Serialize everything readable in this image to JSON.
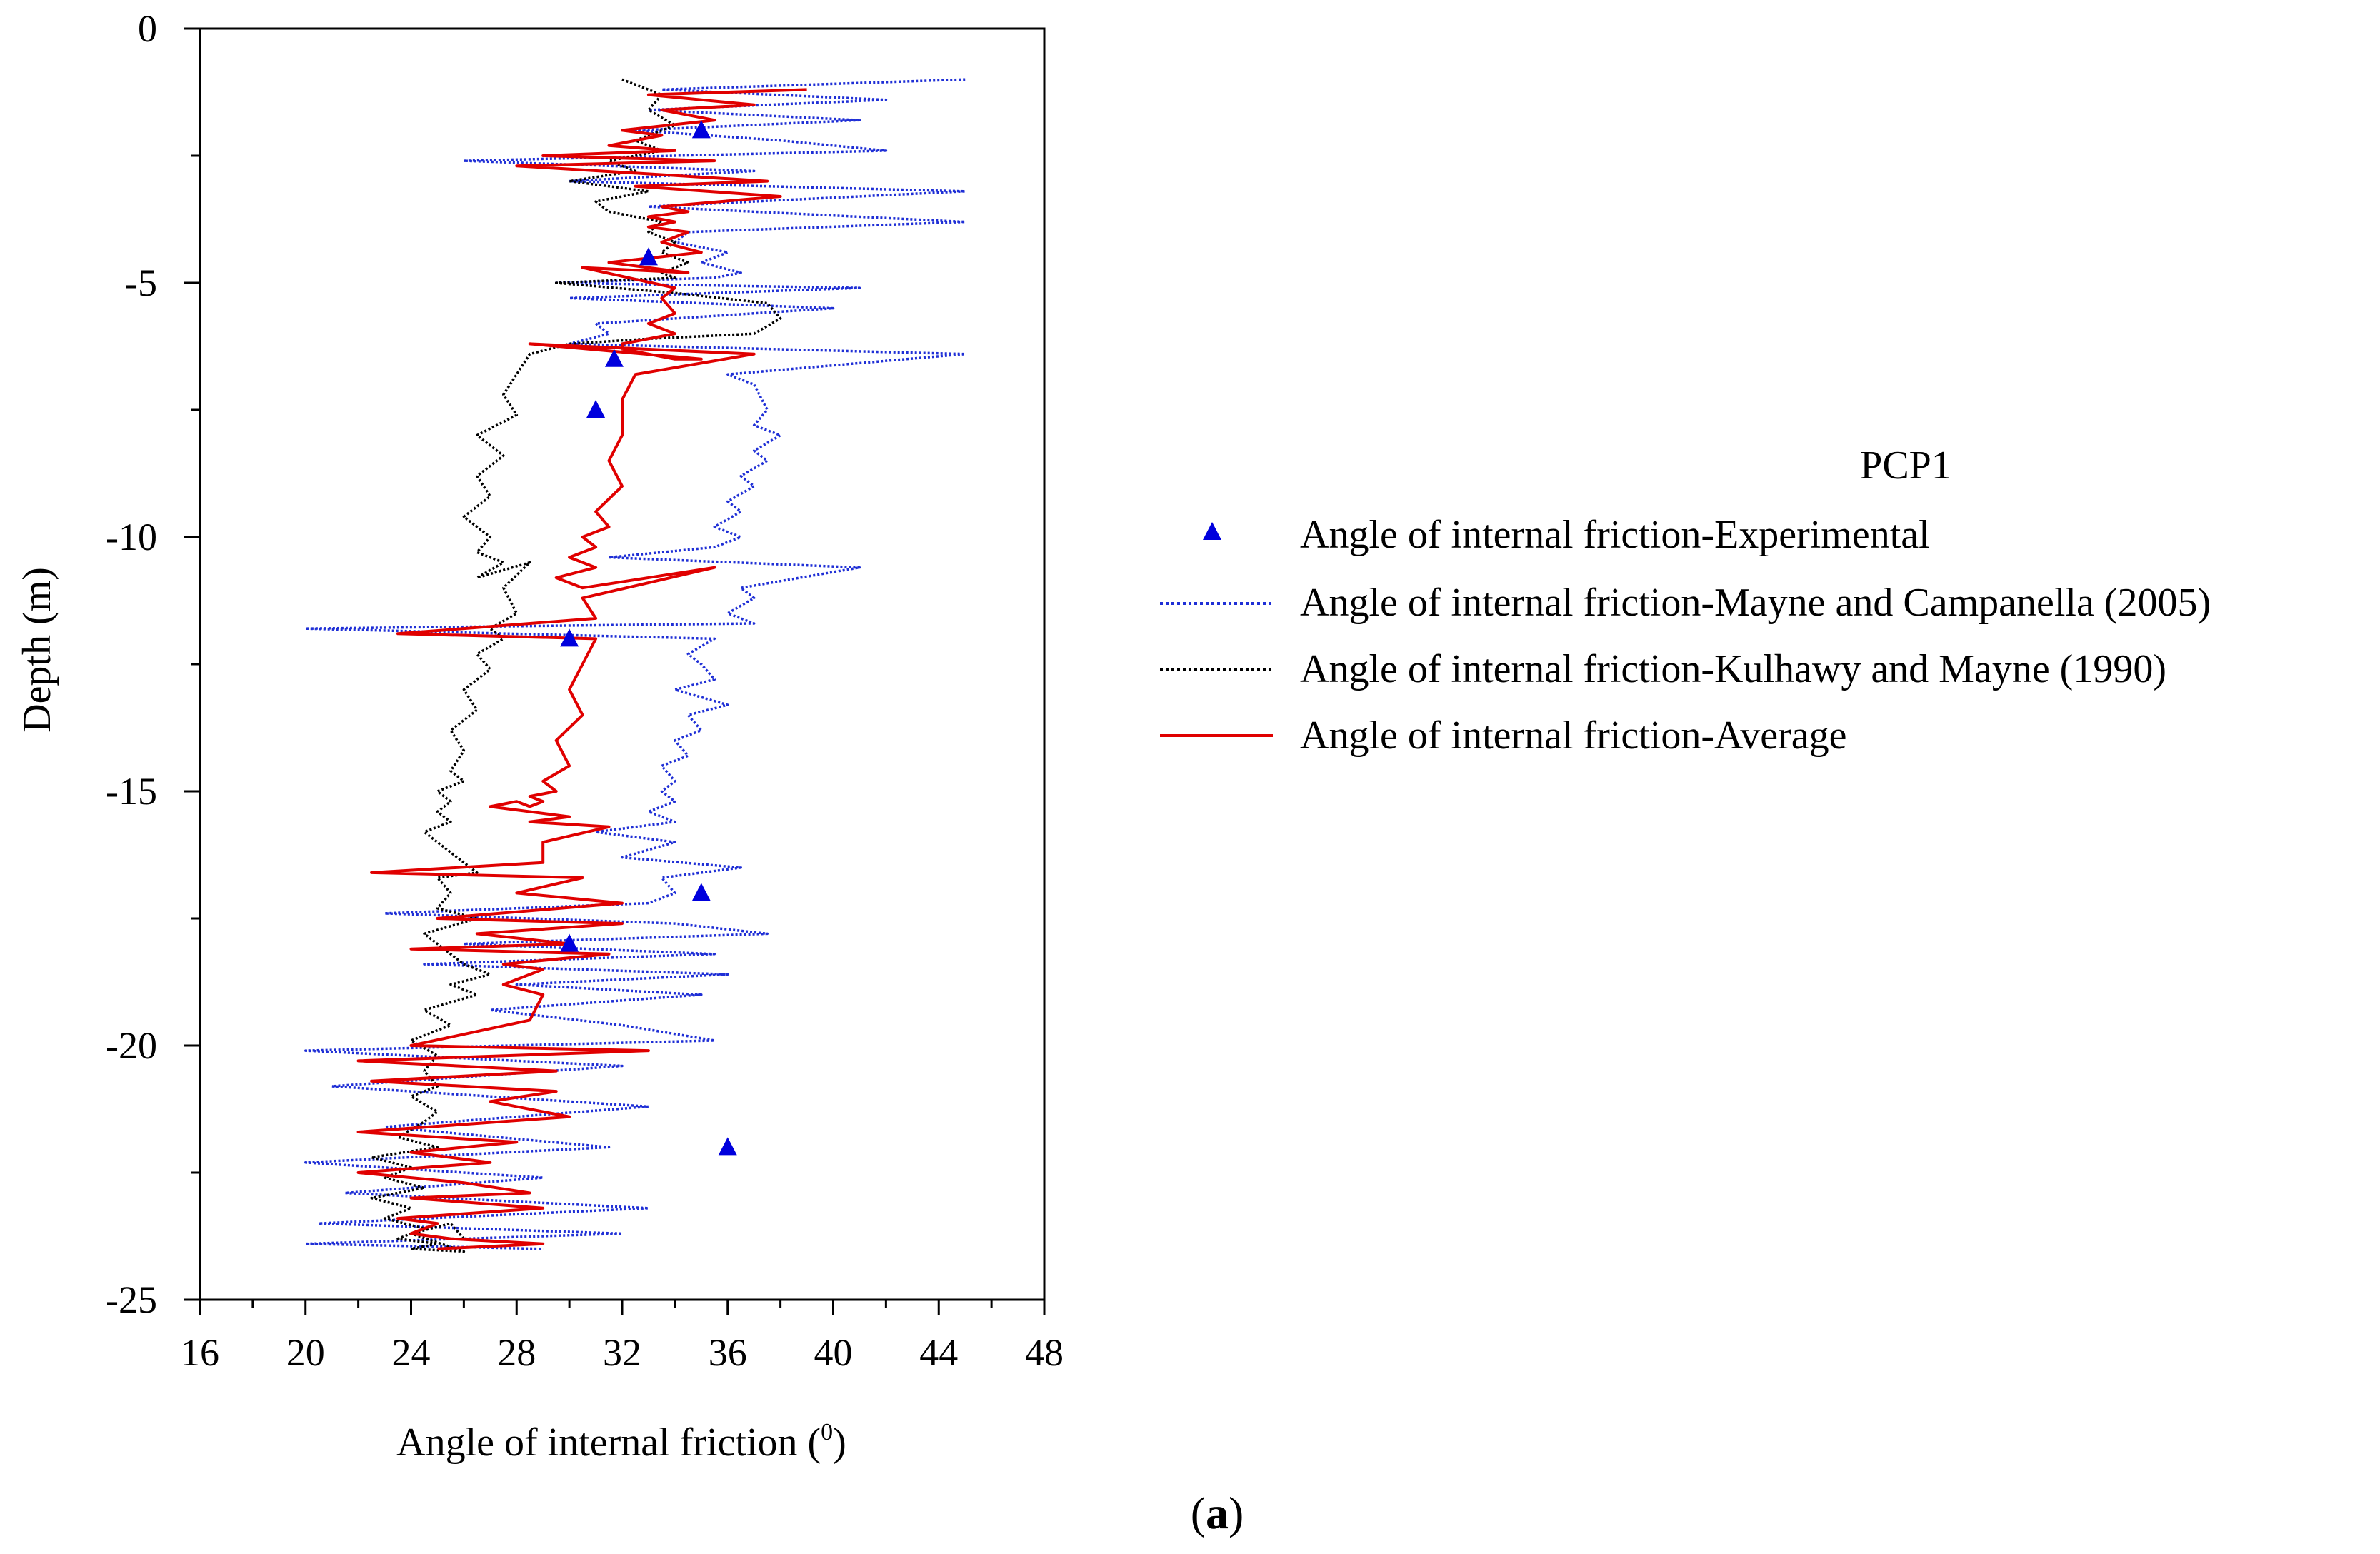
{
  "chart_data": {
    "type": "line",
    "panel_label_open": "(",
    "panel_label_letter": "a",
    "panel_label_close": ")",
    "xlabel": "Angle of internal friction (",
    "xlabel_sup": "0",
    "xlabel_close": ")",
    "ylabel": "Depth (m)",
    "xlim": [
      16,
      48
    ],
    "ylim": [
      -25,
      0
    ],
    "x_ticks": [
      16,
      20,
      24,
      28,
      32,
      36,
      40,
      44,
      48
    ],
    "y_ticks": [
      0,
      -5,
      -10,
      -15,
      -20,
      -25
    ],
    "legend_title": "PCP1",
    "legend_position": "right",
    "colors": {
      "experimental": "#0000dd",
      "mayne": "#1f2fd6",
      "kulhawy": "#000000",
      "average": "#e00000"
    },
    "series": [
      {
        "name": "Angle of internal friction-Experimental",
        "style": "triangle-marker",
        "x": [
          35.0,
          33.0,
          31.7,
          31.0,
          30.0,
          35.0,
          30.0,
          36.0
        ],
        "depth": [
          -2.0,
          -4.5,
          -6.5,
          -7.5,
          -12.0,
          -17.0,
          -18.0,
          -22.0
        ]
      },
      {
        "name": "Angle of internal friction-Mayne and Campanella (2005)",
        "style": "dotted",
        "x": [
          45.0,
          33.5,
          42.0,
          33.0,
          41.0,
          32.5,
          38.0,
          42.0,
          26.0,
          37.0,
          30.0,
          45.0,
          33.0,
          45.0,
          34.5,
          34.0,
          36.0,
          35.0,
          36.5,
          35.5,
          29.5,
          41.0,
          30.0,
          40.0,
          31.0,
          31.5,
          30.0,
          45.0,
          36.0,
          37.0,
          37.5,
          37.0,
          38.0,
          37.0,
          37.5,
          36.5,
          37.0,
          36.0,
          36.5,
          35.5,
          36.5,
          35.5,
          31.5,
          41.0,
          36.5,
          37.0,
          36.0,
          37.0,
          20.0,
          35.5,
          34.5,
          35.0,
          35.5,
          34.0,
          36.0,
          34.5,
          35.0,
          34.0,
          34.5,
          33.5,
          34.0,
          33.5,
          34.0,
          33.0,
          34.0,
          31.0,
          34.0,
          32.0,
          36.5,
          33.5,
          34.0,
          33.0,
          23.0,
          34.0,
          37.5,
          26.0,
          35.5,
          24.5,
          36.0,
          28.0,
          35.0,
          27.0,
          32.0,
          35.5,
          20.0,
          32.0,
          21.0,
          33.0,
          23.0,
          31.5,
          20.0,
          29.0,
          21.5,
          33.0,
          20.5,
          32.0,
          20.0,
          29.0
        ],
        "depth": [
          -1.0,
          -1.2,
          -1.4,
          -1.6,
          -1.8,
          -2.0,
          -2.2,
          -2.4,
          -2.6,
          -2.8,
          -3.0,
          -3.2,
          -3.5,
          -3.8,
          -4.0,
          -4.2,
          -4.4,
          -4.6,
          -4.8,
          -4.9,
          -5.0,
          -5.1,
          -5.3,
          -5.5,
          -5.8,
          -6.0,
          -6.2,
          -6.4,
          -6.8,
          -7.0,
          -7.5,
          -7.8,
          -8.0,
          -8.3,
          -8.5,
          -8.8,
          -9.0,
          -9.3,
          -9.5,
          -9.8,
          -10.0,
          -10.2,
          -10.4,
          -10.6,
          -11.0,
          -11.2,
          -11.5,
          -11.7,
          -11.8,
          -12.0,
          -12.3,
          -12.5,
          -12.8,
          -13.0,
          -13.3,
          -13.5,
          -13.8,
          -14.0,
          -14.3,
          -14.5,
          -14.8,
          -15.0,
          -15.2,
          -15.4,
          -15.6,
          -15.8,
          -16.0,
          -16.3,
          -16.5,
          -16.7,
          -17.0,
          -17.2,
          -17.4,
          -17.6,
          -17.8,
          -18.0,
          -18.2,
          -18.4,
          -18.6,
          -18.8,
          -19.0,
          -19.3,
          -19.6,
          -19.9,
          -20.1,
          -20.4,
          -20.8,
          -21.2,
          -21.6,
          -22.0,
          -22.3,
          -22.6,
          -22.9,
          -23.2,
          -23.5,
          -23.7,
          -23.9,
          -24.0
        ]
      },
      {
        "name": "Angle of internal friction-Kulhawy and Mayne (1990)",
        "style": "dotted",
        "x": [
          32.0,
          33.5,
          33.0,
          34.0,
          32.5,
          33.5,
          31.5,
          32.5,
          30.0,
          33.0,
          31.0,
          31.5,
          33.5,
          33.0,
          34.0,
          33.5,
          34.5,
          33.5,
          34.0,
          29.5,
          34.0,
          37.5,
          38.0,
          37.0,
          33.0,
          30.0,
          28.5,
          28.0,
          27.5,
          28.0,
          26.5,
          27.5,
          26.5,
          27.0,
          26.0,
          27.0,
          26.5,
          27.5,
          26.5,
          28.5,
          27.5,
          28.0,
          27.0,
          27.5,
          26.5,
          27.0,
          26.0,
          26.5,
          25.5,
          26.0,
          25.5,
          26.0,
          25.0,
          25.5,
          25.0,
          25.5,
          24.5,
          25.0,
          25.5,
          26.0,
          26.5,
          25.0,
          25.5,
          25.0,
          26.5,
          24.5,
          25.0,
          25.5,
          26.0,
          27.0,
          25.5,
          26.5,
          24.5,
          25.5,
          24.0,
          25.0,
          24.5,
          25.0,
          24.0,
          25.0,
          24.5,
          23.5,
          25.0,
          22.5,
          24.0,
          23.0,
          24.5,
          22.5,
          24.0,
          23.0,
          24.5,
          23.5,
          25.0,
          24.0,
          26.0,
          24.0,
          25.5,
          26.0
        ],
        "depth": [
          -1.0,
          -1.3,
          -1.6,
          -1.9,
          -2.2,
          -2.4,
          -2.6,
          -2.8,
          -3.0,
          -3.2,
          -3.4,
          -3.6,
          -3.8,
          -4.0,
          -4.2,
          -4.4,
          -4.6,
          -4.8,
          -4.9,
          -5.0,
          -5.2,
          -5.4,
          -5.7,
          -6.0,
          -6.1,
          -6.2,
          -6.4,
          -6.8,
          -7.2,
          -7.6,
          -8.0,
          -8.4,
          -8.8,
          -9.2,
          -9.6,
          -10.0,
          -10.3,
          -10.5,
          -10.8,
          -10.5,
          -11.0,
          -11.5,
          -11.8,
          -12.0,
          -12.3,
          -12.6,
          -13.0,
          -13.4,
          -13.8,
          -14.2,
          -14.6,
          -14.8,
          -15.0,
          -15.2,
          -15.4,
          -15.6,
          -15.8,
          -16.0,
          -16.2,
          -16.4,
          -16.6,
          -16.7,
          -17.0,
          -17.3,
          -17.5,
          -17.8,
          -18.0,
          -18.2,
          -18.4,
          -18.6,
          -18.8,
          -19.0,
          -19.3,
          -19.6,
          -19.9,
          -20.2,
          -20.5,
          -20.8,
          -21.0,
          -21.3,
          -21.5,
          -21.8,
          -22.0,
          -22.2,
          -22.4,
          -22.6,
          -22.8,
          -23.0,
          -23.2,
          -23.4,
          -23.6,
          -23.8,
          -23.9,
          -24.0,
          -24.05,
          -23.7,
          -23.5,
          -23.8
        ]
      },
      {
        "name": "Angle of internal friction-Average",
        "style": "solid",
        "x": [
          39.0,
          33.0,
          37.0,
          33.5,
          35.5,
          32.0,
          33.5,
          31.5,
          34.0,
          29.0,
          35.5,
          28.0,
          37.5,
          32.5,
          38.0,
          33.5,
          34.5,
          33.0,
          34.0,
          33.0,
          34.5,
          33.5,
          35.0,
          31.5,
          34.5,
          30.5,
          34.0,
          33.5,
          34.0,
          33.0,
          34.0,
          32.0,
          32.0,
          34.0,
          35.0,
          28.5,
          37.0,
          32.5,
          32.0,
          32.0,
          31.5,
          32.0,
          31.0,
          31.5,
          30.5,
          31.0,
          30.0,
          31.0,
          29.5,
          30.5,
          35.5,
          30.5,
          31.0,
          23.5,
          31.0,
          30.5,
          30.0,
          30.5,
          29.5,
          30.0,
          29.0,
          29.5,
          28.5,
          29.0,
          28.5,
          28.0,
          27.0,
          30.0,
          28.5,
          31.5,
          29.0,
          29.0,
          22.5,
          30.5,
          28.0,
          32.0,
          25.0,
          32.0,
          26.5,
          30.0,
          24.0,
          31.5,
          27.5,
          29.0,
          27.5,
          29.0,
          28.5,
          24.0,
          33.0,
          22.0,
          29.5,
          22.5,
          29.5,
          27.0,
          30.0,
          22.0,
          28.0,
          24.0,
          27.0,
          22.0,
          26.0,
          28.5,
          24.0,
          29.0,
          23.5,
          25.0,
          24.0,
          25.5,
          29.0,
          25.0
        ],
        "depth": [
          -1.2,
          -1.3,
          -1.5,
          -1.6,
          -1.8,
          -2.0,
          -2.1,
          -2.3,
          -2.4,
          -2.5,
          -2.6,
          -2.7,
          -3.0,
          -3.1,
          -3.3,
          -3.5,
          -3.6,
          -3.7,
          -3.8,
          -3.9,
          -4.0,
          -4.2,
          -4.4,
          -4.6,
          -4.8,
          -4.7,
          -5.1,
          -5.3,
          -5.6,
          -5.8,
          -6.0,
          -6.2,
          -6.3,
          -6.5,
          -6.5,
          -6.2,
          -6.4,
          -6.8,
          -7.3,
          -8.0,
          -8.5,
          -9.0,
          -9.5,
          -9.8,
          -10.0,
          -10.2,
          -10.4,
          -10.6,
          -10.8,
          -11.0,
          -10.6,
          -11.2,
          -11.6,
          -11.9,
          -12.0,
          -12.5,
          -13.0,
          -13.5,
          -14.0,
          -14.5,
          -14.8,
          -15.0,
          -15.1,
          -15.2,
          -15.3,
          -15.2,
          -15.3,
          -15.5,
          -15.6,
          -15.7,
          -16.0,
          -16.4,
          -16.6,
          -16.7,
          -17.0,
          -17.2,
          -17.5,
          -17.6,
          -17.8,
          -18.0,
          -18.1,
          -18.2,
          -18.4,
          -18.5,
          -18.8,
          -19.0,
          -19.5,
          -20.0,
          -20.1,
          -20.3,
          -20.5,
          -20.7,
          -20.9,
          -21.1,
          -21.4,
          -21.7,
          -21.9,
          -22.1,
          -22.3,
          -22.5,
          -22.7,
          -22.9,
          -23.0,
          -23.2,
          -23.4,
          -23.5,
          -23.7,
          -23.8,
          -23.9,
          -24.0
        ]
      }
    ]
  }
}
